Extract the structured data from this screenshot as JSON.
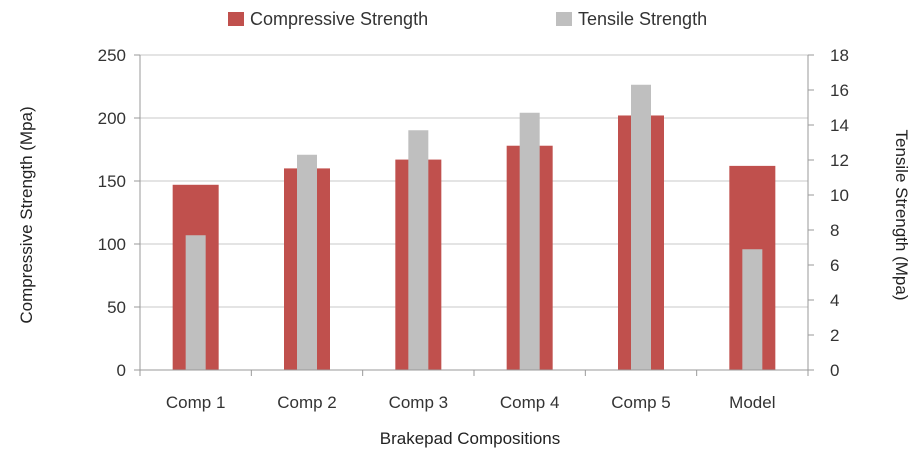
{
  "chart_data": {
    "type": "bar",
    "categories": [
      "Comp 1",
      "Comp 2",
      "Comp 3",
      "Comp 4",
      "Comp 5",
      "Model"
    ],
    "series": [
      {
        "name": "Compressive Strength",
        "axis": "left",
        "color": "#c0504d",
        "values": [
          147,
          160,
          167,
          178,
          202,
          162
        ]
      },
      {
        "name": "Tensile Strength",
        "axis": "right",
        "color": "#bfbfbf",
        "values": [
          7.7,
          12.3,
          13.7,
          14.7,
          16.3,
          6.9
        ]
      }
    ],
    "xlabel": "Brakepad Compositions",
    "ylabel_left": "Compressive Strength (Mpa)",
    "ylabel_right": "Tensile Strength (Mpa)",
    "ylim_left": [
      0,
      250
    ],
    "yticks_left": [
      0,
      50,
      100,
      150,
      200,
      250
    ],
    "ylim_right": [
      0,
      18
    ],
    "yticks_right": [
      0,
      2,
      4,
      6,
      8,
      10,
      12,
      14,
      16,
      18
    ],
    "grid": "horizontal",
    "legend_position": "top"
  }
}
